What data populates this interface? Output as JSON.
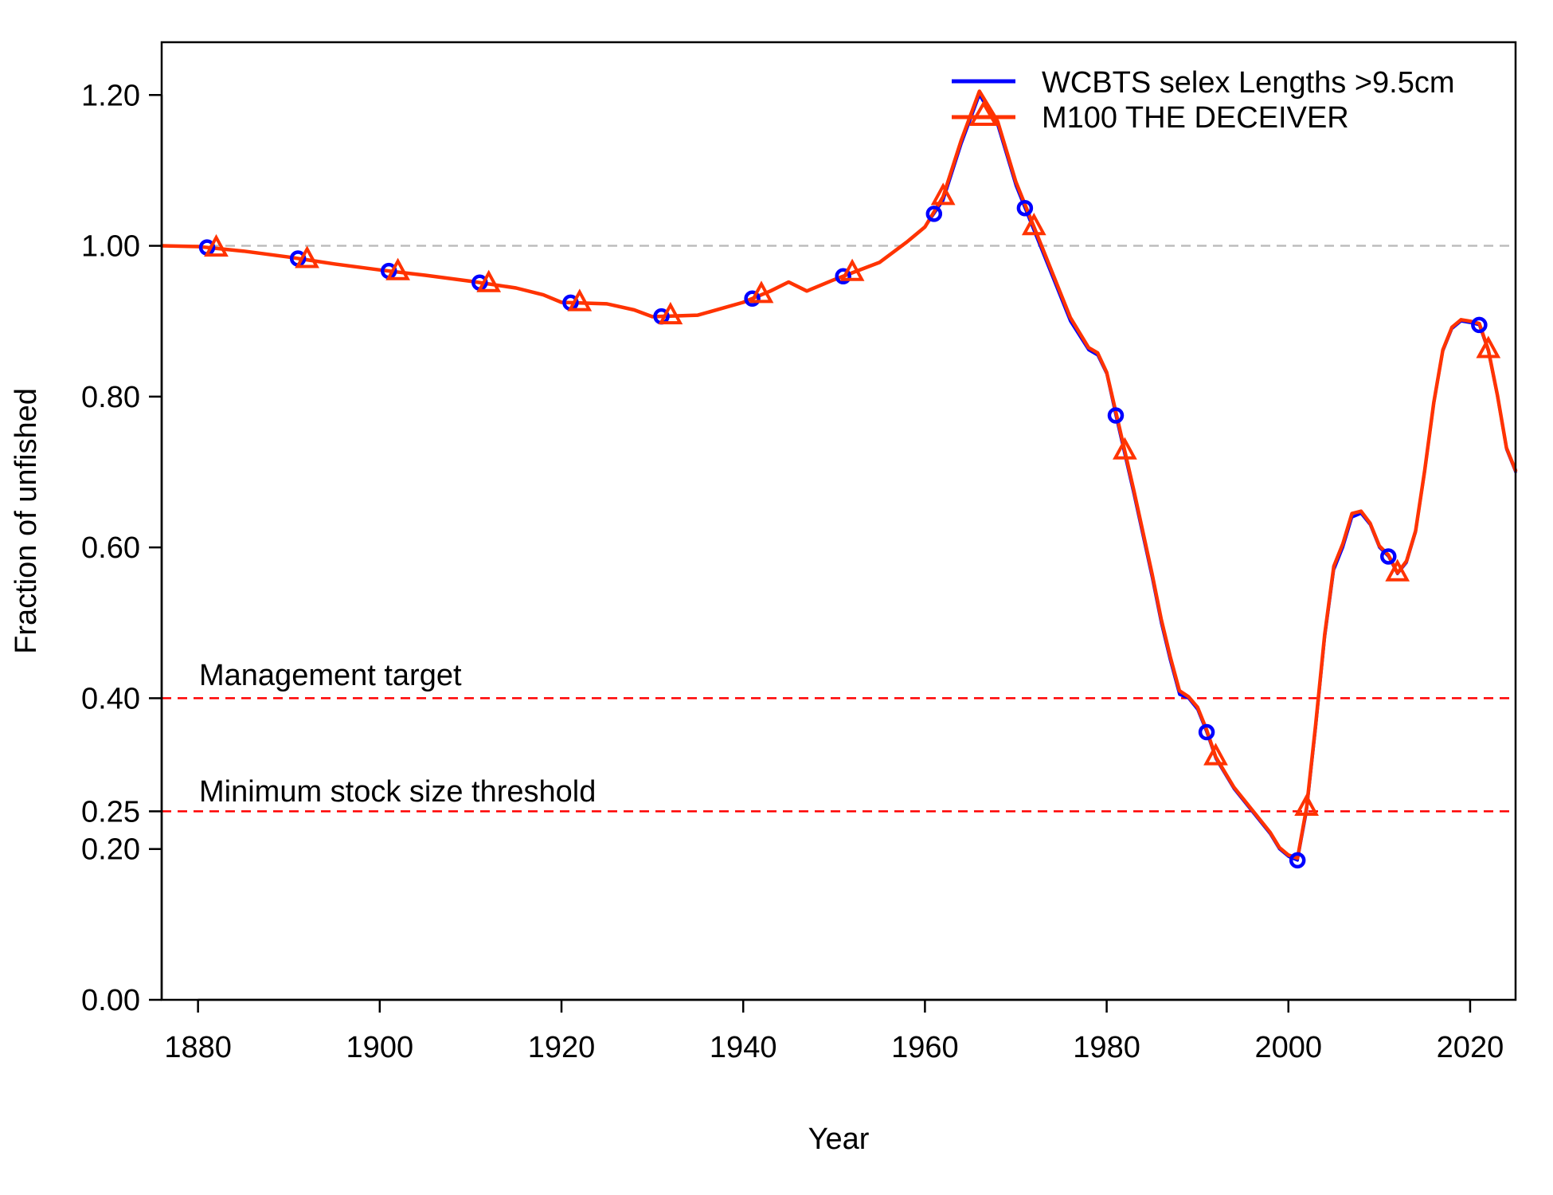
{
  "chart_data": {
    "type": "line",
    "xlabel": "Year",
    "ylabel": "Fraction of unfished",
    "xlim": [
      1876,
      2025
    ],
    "ylim": [
      0,
      1.27
    ],
    "x_ticks": [
      1880,
      1900,
      1920,
      1940,
      1960,
      1980,
      2000,
      2020
    ],
    "y_ticks": [
      0.0,
      0.2,
      0.25,
      0.4,
      0.6,
      0.8,
      1.0,
      1.2
    ],
    "y_tick_labels": [
      "0.00",
      "0.20",
      "0.25",
      "0.40",
      "0.60",
      "0.80",
      "1.00",
      "1.20"
    ],
    "grid": false,
    "legend_position": "top-right",
    "reference_lines": [
      {
        "y": 1.0,
        "color": "#bdbdbd",
        "style": "dashed",
        "label": ""
      },
      {
        "y": 0.4,
        "color": "#ff0000",
        "style": "dashed",
        "label": "Management target"
      },
      {
        "y": 0.25,
        "color": "#ff0000",
        "style": "dashed",
        "label": "Minimum stock size threshold"
      }
    ],
    "series": [
      {
        "name": "WCBTS selex Lengths >9.5cm",
        "color": "#0000ff",
        "marker": "circle",
        "marker_years": [
          1881,
          1891,
          1901,
          1911,
          1921,
          1931,
          1941,
          1951,
          1961,
          1971,
          1981,
          1991,
          2001,
          2011,
          2021
        ],
        "x": [
          1876,
          1880,
          1885,
          1890,
          1895,
          1900,
          1905,
          1910,
          1915,
          1918,
          1920,
          1925,
          1928,
          1930,
          1935,
          1940,
          1943,
          1945,
          1947,
          1950,
          1955,
          1958,
          1960,
          1962,
          1964,
          1966,
          1968,
          1970,
          1972,
          1974,
          1976,
          1978,
          1979,
          1980,
          1981,
          1983,
          1985,
          1986,
          1987,
          1988,
          1989,
          1990,
          1991,
          1992,
          1994,
          1996,
          1998,
          1999,
          2000,
          2001,
          2002,
          2003,
          2004,
          2005,
          2006,
          2007,
          2008,
          2009,
          2010,
          2011,
          2012,
          2013,
          2014,
          2015,
          2016,
          2017,
          2018,
          2019,
          2020,
          2021,
          2022,
          2023,
          2024,
          2025
        ],
        "y": [
          1.0,
          0.999,
          0.993,
          0.985,
          0.976,
          0.968,
          0.961,
          0.953,
          0.944,
          0.935,
          0.925,
          0.923,
          0.915,
          0.906,
          0.908,
          0.925,
          0.94,
          0.952,
          0.94,
          0.955,
          0.978,
          1.005,
          1.025,
          1.06,
          1.135,
          1.2,
          1.16,
          1.08,
          1.02,
          0.96,
          0.9,
          0.862,
          0.855,
          0.83,
          0.775,
          0.67,
          0.56,
          0.5,
          0.45,
          0.405,
          0.4,
          0.385,
          0.355,
          0.32,
          0.28,
          0.25,
          0.22,
          0.2,
          0.19,
          0.185,
          0.25,
          0.36,
          0.48,
          0.57,
          0.6,
          0.64,
          0.645,
          0.63,
          0.6,
          0.588,
          0.565,
          0.58,
          0.62,
          0.7,
          0.79,
          0.86,
          0.89,
          0.9,
          0.898,
          0.895,
          0.86,
          0.8,
          0.73,
          0.7
        ]
      },
      {
        "name": "M100 THE DECEIVER",
        "color": "#ff3300",
        "marker": "triangle",
        "marker_years": [
          1882,
          1892,
          1902,
          1912,
          1922,
          1932,
          1942,
          1952,
          1962,
          1972,
          1982,
          1992,
          2002,
          2012,
          2022
        ],
        "x": [
          1876,
          1880,
          1885,
          1890,
          1895,
          1900,
          1905,
          1910,
          1915,
          1918,
          1920,
          1925,
          1928,
          1930,
          1935,
          1940,
          1943,
          1945,
          1947,
          1950,
          1955,
          1958,
          1960,
          1962,
          1964,
          1966,
          1968,
          1970,
          1972,
          1974,
          1976,
          1978,
          1979,
          1980,
          1981,
          1983,
          1985,
          1986,
          1987,
          1988,
          1989,
          1990,
          1991,
          1992,
          1994,
          1996,
          1998,
          1999,
          2000,
          2001,
          2002,
          2003,
          2004,
          2005,
          2006,
          2007,
          2008,
          2009,
          2010,
          2011,
          2012,
          2013,
          2014,
          2015,
          2016,
          2017,
          2018,
          2019,
          2020,
          2021,
          2022,
          2023,
          2024,
          2025
        ],
        "y": [
          1.0,
          0.999,
          0.993,
          0.985,
          0.976,
          0.968,
          0.961,
          0.953,
          0.944,
          0.935,
          0.925,
          0.923,
          0.915,
          0.906,
          0.908,
          0.925,
          0.94,
          0.952,
          0.94,
          0.955,
          0.978,
          1.005,
          1.025,
          1.065,
          1.14,
          1.205,
          1.165,
          1.085,
          1.025,
          0.965,
          0.905,
          0.865,
          0.858,
          0.832,
          0.78,
          0.675,
          0.565,
          0.505,
          0.455,
          0.41,
          0.402,
          0.388,
          0.358,
          0.322,
          0.282,
          0.252,
          0.222,
          0.202,
          0.192,
          0.188,
          0.255,
          0.365,
          0.485,
          0.575,
          0.605,
          0.645,
          0.648,
          0.632,
          0.602,
          0.59,
          0.566,
          0.582,
          0.622,
          0.702,
          0.792,
          0.862,
          0.892,
          0.902,
          0.9,
          0.897,
          0.862,
          0.802,
          0.732,
          0.702
        ]
      }
    ]
  }
}
